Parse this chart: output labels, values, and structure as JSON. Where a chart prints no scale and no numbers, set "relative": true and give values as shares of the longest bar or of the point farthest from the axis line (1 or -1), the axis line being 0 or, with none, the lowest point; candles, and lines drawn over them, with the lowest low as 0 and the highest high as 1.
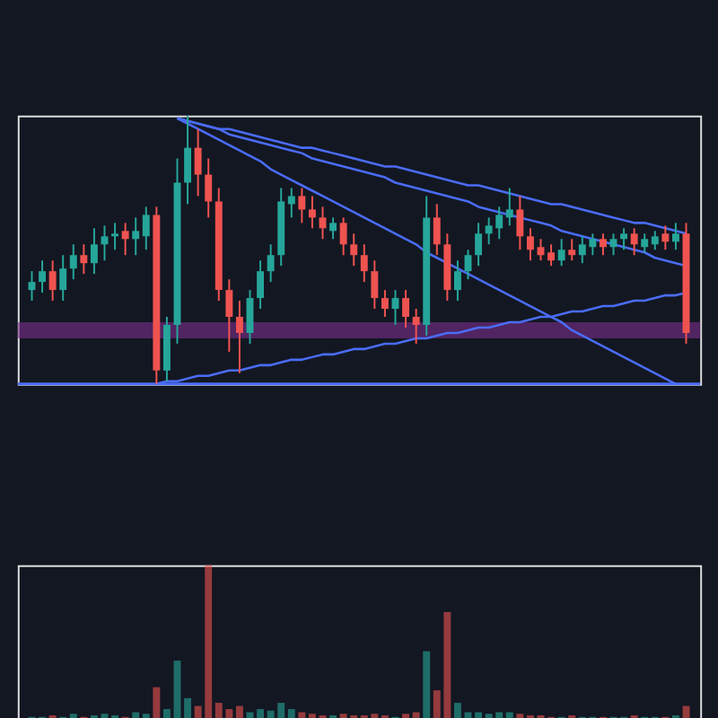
{
  "chart_data": [
    {
      "type": "candlestick",
      "relative": true,
      "tick_labels": false,
      "categories": [
        null,
        null,
        null,
        null,
        null,
        null,
        null,
        null,
        null,
        null,
        null,
        null,
        null,
        null,
        null,
        null,
        null,
        null,
        null,
        null,
        null,
        null,
        null,
        null,
        null,
        null,
        null,
        null,
        null,
        null,
        null,
        null,
        null,
        null,
        null,
        null,
        null,
        null,
        null,
        null,
        null,
        null,
        null,
        null,
        null,
        null,
        null,
        null,
        null,
        null,
        null,
        null,
        null,
        null,
        null,
        null,
        null,
        null,
        null,
        null,
        null,
        null,
        null,
        null
      ],
      "ohlc": [
        [
          0.35,
          0.42,
          0.31,
          0.38
        ],
        [
          0.38,
          0.46,
          0.34,
          0.42
        ],
        [
          0.42,
          0.46,
          0.31,
          0.35
        ],
        [
          0.35,
          0.48,
          0.31,
          0.43
        ],
        [
          0.43,
          0.52,
          0.39,
          0.48
        ],
        [
          0.48,
          0.52,
          0.41,
          0.45
        ],
        [
          0.45,
          0.58,
          0.41,
          0.52
        ],
        [
          0.52,
          0.59,
          0.46,
          0.55
        ],
        [
          0.55,
          0.6,
          0.5,
          0.56
        ],
        [
          0.57,
          0.6,
          0.48,
          0.54
        ],
        [
          0.54,
          0.62,
          0.48,
          0.57
        ],
        [
          0.55,
          0.66,
          0.5,
          0.63
        ],
        [
          0.63,
          0.66,
          0,
          0.05
        ],
        [
          0.05,
          0.25,
          0.01,
          0.22
        ],
        [
          0.22,
          0.84,
          0.15,
          0.75
        ],
        [
          0.75,
          1.0,
          0.67,
          0.88
        ],
        [
          0.88,
          0.95,
          0.7,
          0.78
        ],
        [
          0.78,
          0.84,
          0.62,
          0.68
        ],
        [
          0.68,
          0.73,
          0.31,
          0.35
        ],
        [
          0.35,
          0.39,
          0.12,
          0.25
        ],
        [
          0.25,
          0.31,
          0.04,
          0.19
        ],
        [
          0.19,
          0.35,
          0.15,
          0.32
        ],
        [
          0.32,
          0.46,
          0.28,
          0.42
        ],
        [
          0.42,
          0.52,
          0.38,
          0.48
        ],
        [
          0.48,
          0.73,
          0.44,
          0.68
        ],
        [
          0.67,
          0.73,
          0.62,
          0.7
        ],
        [
          0.7,
          0.73,
          0.6,
          0.65
        ],
        [
          0.65,
          0.7,
          0.58,
          0.62
        ],
        [
          0.62,
          0.66,
          0.54,
          0.58
        ],
        [
          0.57,
          0.62,
          0.54,
          0.6
        ],
        [
          0.6,
          0.62,
          0.48,
          0.52
        ],
        [
          0.52,
          0.56,
          0.44,
          0.48
        ],
        [
          0.48,
          0.52,
          0.38,
          0.42
        ],
        [
          0.42,
          0.46,
          0.28,
          0.32
        ],
        [
          0.32,
          0.35,
          0.25,
          0.28
        ],
        [
          0.28,
          0.35,
          0.22,
          0.32
        ],
        [
          0.32,
          0.35,
          0.21,
          0.25
        ],
        [
          0.25,
          0.28,
          0.15,
          0.22
        ],
        [
          0.22,
          0.7,
          0.18,
          0.62
        ],
        [
          0.62,
          0.67,
          0.48,
          0.52
        ],
        [
          0.52,
          0.56,
          0.31,
          0.35
        ],
        [
          0.35,
          0.46,
          0.31,
          0.42
        ],
        [
          0.42,
          0.5,
          0.39,
          0.48
        ],
        [
          0.48,
          0.6,
          0.44,
          0.56
        ],
        [
          0.56,
          0.62,
          0.52,
          0.59
        ],
        [
          0.58,
          0.66,
          0.54,
          0.63
        ],
        [
          0.62,
          0.73,
          0.59,
          0.65
        ],
        [
          0.65,
          0.7,
          0.5,
          0.55
        ],
        [
          0.55,
          0.58,
          0.46,
          0.5
        ],
        [
          0.51,
          0.54,
          0.46,
          0.48
        ],
        [
          0.49,
          0.52,
          0.44,
          0.46
        ],
        [
          0.46,
          0.54,
          0.44,
          0.5
        ],
        [
          0.5,
          0.54,
          0.46,
          0.48
        ],
        [
          0.48,
          0.55,
          0.45,
          0.52
        ],
        [
          0.51,
          0.56,
          0.48,
          0.54
        ],
        [
          0.54,
          0.56,
          0.48,
          0.51
        ],
        [
          0.51,
          0.56,
          0.48,
          0.54
        ],
        [
          0.54,
          0.58,
          0.5,
          0.56
        ],
        [
          0.56,
          0.58,
          0.48,
          0.52
        ],
        [
          0.51,
          0.56,
          0.49,
          0.54
        ],
        [
          0.52,
          0.57,
          0.5,
          0.55
        ],
        [
          0.56,
          0.59,
          0.5,
          0.53
        ],
        [
          0.53,
          0.6,
          0.5,
          0.56
        ],
        [
          0.56,
          0.6,
          0.15,
          0.19
        ]
      ],
      "colors": [
        "#26a69a",
        "#26a69a",
        "#ef5350",
        "#26a69a",
        "#26a69a",
        "#ef5350",
        "#26a69a",
        "#26a69a",
        "#26a69a",
        "#ef5350",
        "#26a69a",
        "#26a69a",
        "#ef5350",
        "#26a69a",
        "#26a69a",
        "#26a69a",
        "#ef5350",
        "#ef5350",
        "#ef5350",
        "#ef5350",
        "#ef5350",
        "#26a69a",
        "#26a69a",
        "#26a69a",
        "#26a69a",
        "#26a69a",
        "#ef5350",
        "#ef5350",
        "#ef5350",
        "#26a69a",
        "#ef5350",
        "#ef5350",
        "#ef5350",
        "#ef5350",
        "#ef5350",
        "#26a69a",
        "#ef5350",
        "#ef5350",
        "#26a69a",
        "#ef5350",
        "#ef5350",
        "#26a69a",
        "#26a69a",
        "#26a69a",
        "#26a69a",
        "#26a69a",
        "#26a69a",
        "#ef5350",
        "#ef5350",
        "#ef5350",
        "#ef5350",
        "#26a69a",
        "#ef5350",
        "#26a69a",
        "#26a69a",
        "#ef5350",
        "#26a69a",
        "#26a69a",
        "#ef5350",
        "#26a69a",
        "#26a69a",
        "#ef5350",
        "#26a69a",
        "#ef5350"
      ],
      "series": [
        {
          "type": "line",
          "color": "#4a6cf7",
          "values": [
            null,
            null,
            null,
            null,
            null,
            null,
            null,
            null,
            null,
            null,
            null,
            null,
            null,
            null,
            0.99,
            0.98,
            0.97,
            0.96,
            0.95,
            0.95,
            0.94,
            0.93,
            0.92,
            0.91,
            0.9,
            0.89,
            0.88,
            0.88,
            0.87,
            0.86,
            0.85,
            0.84,
            0.83,
            0.82,
            0.81,
            0.81,
            0.8,
            0.79,
            0.78,
            0.77,
            0.76,
            0.75,
            0.74,
            0.74,
            0.73,
            0.72,
            0.71,
            0.7,
            0.69,
            0.68,
            0.67,
            0.67,
            0.66,
            0.65,
            0.64,
            0.63,
            0.62,
            0.61,
            0.6,
            0.6,
            0.59,
            0.58,
            0.57,
            0.56
          ]
        },
        {
          "type": "line",
          "color": "#4a6cf7",
          "values": [
            null,
            null,
            null,
            null,
            null,
            null,
            null,
            null,
            null,
            null,
            null,
            null,
            null,
            null,
            0.99,
            0.98,
            0.97,
            0.96,
            0.95,
            0.93,
            0.92,
            0.91,
            0.9,
            0.89,
            0.88,
            0.87,
            0.86,
            0.84,
            0.83,
            0.82,
            0.81,
            0.8,
            0.79,
            0.78,
            0.77,
            0.75,
            0.74,
            0.73,
            0.72,
            0.71,
            0.7,
            0.69,
            0.68,
            0.66,
            0.65,
            0.64,
            0.63,
            0.62,
            0.61,
            0.6,
            0.59,
            0.57,
            0.56,
            0.55,
            0.54,
            0.53,
            0.52,
            0.51,
            0.5,
            0.49,
            0.47,
            0.46,
            0.45,
            0.44
          ]
        },
        {
          "type": "line",
          "color": "#4a6cf7",
          "values": [
            null,
            null,
            null,
            null,
            null,
            null,
            null,
            null,
            null,
            null,
            null,
            null,
            null,
            null,
            0.99,
            0.97,
            0.95,
            0.93,
            0.91,
            0.89,
            0.87,
            0.85,
            0.83,
            0.8,
            0.78,
            0.76,
            0.74,
            0.72,
            0.7,
            0.68,
            0.66,
            0.64,
            0.62,
            0.6,
            0.58,
            0.56,
            0.54,
            0.52,
            0.49,
            0.47,
            0.45,
            0.43,
            0.41,
            0.39,
            0.37,
            0.35,
            0.33,
            0.31,
            0.29,
            0.27,
            0.25,
            0.23,
            0.2,
            0.18,
            0.16,
            0.14,
            0.12,
            0.1,
            0.08,
            0.06,
            0.04,
            0.02,
            0,
            null
          ]
        },
        {
          "type": "line",
          "color": "#4a6cf7",
          "values": [
            null,
            null,
            null,
            null,
            null,
            null,
            null,
            null,
            null,
            null,
            null,
            null,
            0,
            0.01,
            0.01,
            0.02,
            0.03,
            0.03,
            0.04,
            0.05,
            0.05,
            0.06,
            0.07,
            0.07,
            0.08,
            0.09,
            0.09,
            0.1,
            0.11,
            0.11,
            0.12,
            0.13,
            0.13,
            0.14,
            0.15,
            0.15,
            0.16,
            0.17,
            0.17,
            0.18,
            0.19,
            0.19,
            0.2,
            0.21,
            0.21,
            0.22,
            0.23,
            0.23,
            0.24,
            0.25,
            0.25,
            0.26,
            0.27,
            0.27,
            0.28,
            0.29,
            0.29,
            0.3,
            0.31,
            0.31,
            0.32,
            0.33,
            0.33,
            0.34
          ]
        }
      ],
      "ref_lines": [
        {
          "axis": "y",
          "value": 0,
          "color": "#4a6cf7"
        }
      ],
      "bands": [
        {
          "axis": "y",
          "from": 0.17,
          "to": 0.23,
          "color": "#7b2d8e"
        }
      ]
    },
    {
      "type": "bar",
      "relative": true,
      "tick_labels": false,
      "categories": [
        null,
        null,
        null,
        null,
        null,
        null,
        null,
        null,
        null,
        null,
        null,
        null,
        null,
        null,
        null,
        null,
        null,
        null,
        null,
        null,
        null,
        null,
        null,
        null,
        null,
        null,
        null,
        null,
        null,
        null,
        null,
        null,
        null,
        null,
        null,
        null,
        null,
        null,
        null,
        null,
        null,
        null,
        null,
        null,
        null,
        null,
        null,
        null,
        null,
        null,
        null,
        null,
        null,
        null,
        null,
        null,
        null,
        null,
        null,
        null,
        null,
        null,
        null,
        null
      ],
      "values": [
        0.03,
        0.03,
        0.04,
        0.03,
        0.05,
        0.03,
        0.04,
        0.05,
        0.04,
        0.03,
        0.06,
        0.05,
        0.22,
        0.08,
        0.39,
        0.15,
        0.1,
        1.0,
        0.12,
        0.08,
        0.1,
        0.06,
        0.08,
        0.07,
        0.12,
        0.08,
        0.06,
        0.05,
        0.04,
        0.04,
        0.05,
        0.04,
        0.04,
        0.05,
        0.04,
        0.03,
        0.05,
        0.06,
        0.45,
        0.2,
        0.7,
        0.12,
        0.06,
        0.06,
        0.05,
        0.06,
        0.06,
        0.05,
        0.04,
        0.04,
        0.03,
        0.03,
        0.04,
        0.03,
        0.03,
        0.03,
        0.03,
        0.03,
        0.04,
        0.03,
        0.03,
        0.03,
        0.04,
        0.1
      ],
      "colors": [
        "#26a69a",
        "#26a69a",
        "#ef5350",
        "#26a69a",
        "#26a69a",
        "#ef5350",
        "#26a69a",
        "#26a69a",
        "#26a69a",
        "#ef5350",
        "#26a69a",
        "#26a69a",
        "#ef5350",
        "#26a69a",
        "#26a69a",
        "#26a69a",
        "#ef5350",
        "#ef5350",
        "#ef5350",
        "#ef5350",
        "#ef5350",
        "#26a69a",
        "#26a69a",
        "#26a69a",
        "#26a69a",
        "#26a69a",
        "#ef5350",
        "#ef5350",
        "#ef5350",
        "#26a69a",
        "#ef5350",
        "#ef5350",
        "#ef5350",
        "#ef5350",
        "#ef5350",
        "#26a69a",
        "#ef5350",
        "#ef5350",
        "#26a69a",
        "#ef5350",
        "#ef5350",
        "#26a69a",
        "#26a69a",
        "#26a69a",
        "#26a69a",
        "#26a69a",
        "#26a69a",
        "#ef5350",
        "#ef5350",
        "#ef5350",
        "#ef5350",
        "#26a69a",
        "#ef5350",
        "#26a69a",
        "#26a69a",
        "#ef5350",
        "#26a69a",
        "#26a69a",
        "#ef5350",
        "#26a69a",
        "#26a69a",
        "#ef5350",
        "#26a69a",
        "#ef5350"
      ]
    }
  ]
}
